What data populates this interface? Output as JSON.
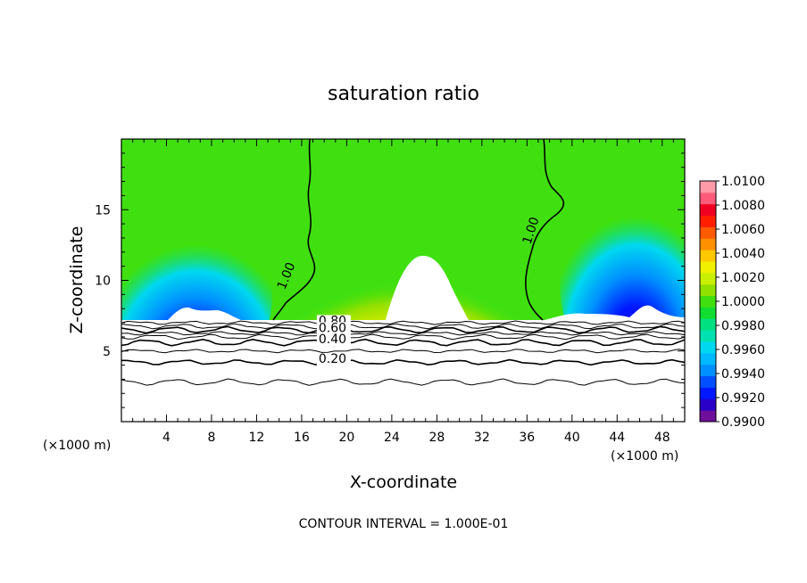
{
  "chart_data": {
    "type": "heatmap",
    "title": "saturation ratio",
    "xlabel": "X-coordinate",
    "ylabel": "Z-coordinate",
    "x_unit_left": "(×1000 m)",
    "x_unit_right": "(×1000 m)",
    "footer": "CONTOUR INTERVAL = 1.000E-01",
    "xlim": [
      0,
      50
    ],
    "ylim": [
      0,
      20
    ],
    "xticks": [
      4,
      8,
      12,
      16,
      20,
      24,
      28,
      32,
      36,
      40,
      44,
      48
    ],
    "yticks": [
      5,
      10,
      15
    ],
    "xtick_labels": [
      "4",
      "8",
      "12",
      "16",
      "20",
      "24",
      "28",
      "32",
      "36",
      "40",
      "44",
      "48"
    ],
    "ytick_labels": [
      "5",
      "10",
      "15"
    ],
    "colorbar": {
      "min": 0.99,
      "max": 1.01,
      "levels": [
        0.99,
        0.991,
        0.992,
        0.993,
        0.994,
        0.995,
        0.996,
        0.997,
        0.998,
        0.999,
        1.0,
        1.001,
        1.002,
        1.003,
        1.004,
        1.005,
        1.006,
        1.007,
        1.008,
        1.009,
        1.01
      ],
      "colors": [
        "#6e0f9c",
        "#2a00c8",
        "#0018ff",
        "#0050ff",
        "#0090ff",
        "#00b8ff",
        "#00d8f0",
        "#00e0b0",
        "#00e080",
        "#10dd30",
        "#40e010",
        "#90e000",
        "#c8f000",
        "#f0f000",
        "#ffc800",
        "#ff9000",
        "#ff5a00",
        "#ff1e00",
        "#f00020",
        "#ff5a7a",
        "#ff9aa8"
      ],
      "labels": [
        "1.0100",
        "1.0080",
        "1.0060",
        "1.0040",
        "1.0020",
        "1.0000",
        "0.9980",
        "0.9960",
        "0.9940",
        "0.9920",
        "0.9900"
      ]
    },
    "contour_labels": [
      {
        "text": "1.00",
        "x": 14.5,
        "y": 9.3,
        "rot": -68
      },
      {
        "text": "1.00",
        "x": 36.3,
        "y": 12.5,
        "rot": -72
      },
      {
        "text": "0.80",
        "x": 17.5,
        "y": 6.85,
        "rot": 0
      },
      {
        "text": "0.60",
        "x": 17.5,
        "y": 6.35,
        "rot": 0
      },
      {
        "text": "0.40",
        "x": 17.5,
        "y": 5.55,
        "rot": 0
      },
      {
        "text": "0.20",
        "x": 17.5,
        "y": 4.15,
        "rot": 0
      }
    ],
    "cloud_base_height": 7.1,
    "contour_levels_below_cloud": [
      7.0,
      6.75,
      6.5,
      6.25,
      6.0,
      5.6,
      5.0,
      4.2,
      2.8
    ]
  }
}
